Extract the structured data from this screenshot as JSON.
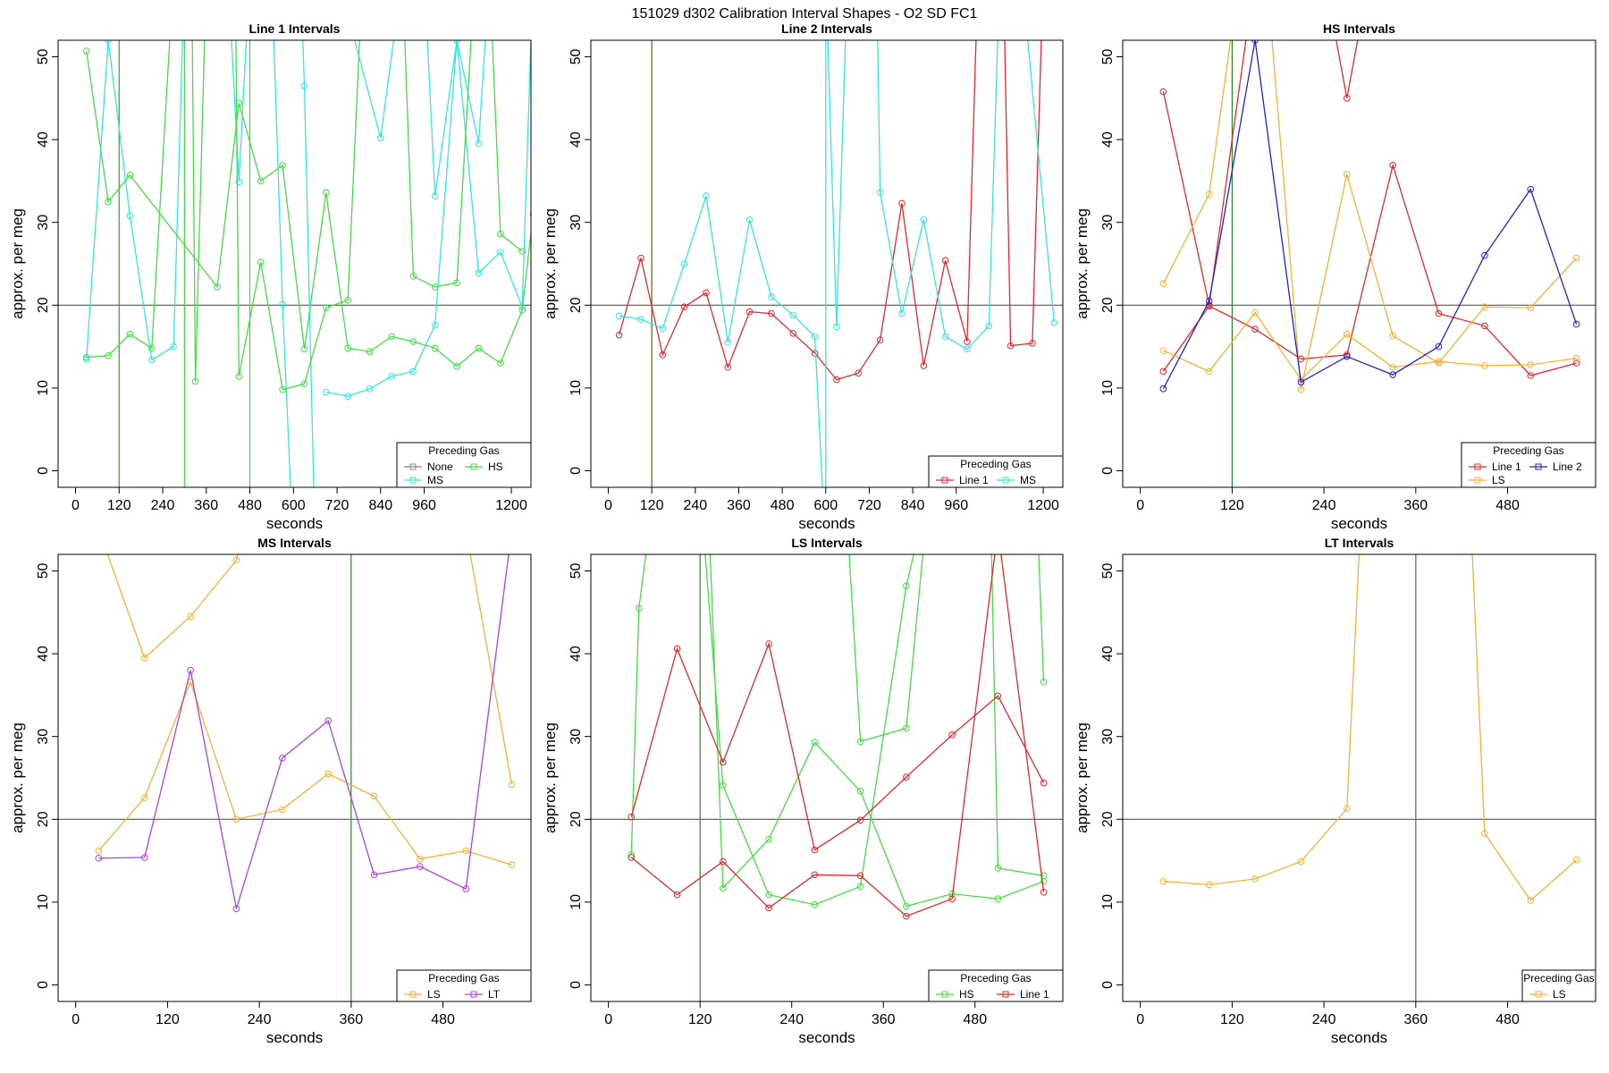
{
  "title": "151029   d302   Calibration Interval Shapes - O2 SD FC1",
  "chart_data": [
    {
      "type": "line",
      "title": "Line 1 Intervals",
      "xlabel": "seconds",
      "ylabel": "approx. per meg",
      "xlim": [
        -48,
        1254
      ],
      "ylim": [
        -2,
        52
      ],
      "xticks": [
        0,
        120,
        240,
        360,
        480,
        600,
        720,
        840,
        960,
        1200
      ],
      "yticks": [
        0,
        10,
        20,
        30,
        40,
        50
      ],
      "hline": 20,
      "vline": 120,
      "vline_color": "#22aa22",
      "legend": "bottomright",
      "legend_title": "Preceding Gas",
      "series": [
        {
          "name": "None",
          "color": "#888888",
          "x": [],
          "values": []
        },
        {
          "name": "MS",
          "color": "#33e6e6",
          "x": [
            30,
            90,
            150,
            210,
            270,
            300,
            null,
            420,
            450,
            480,
            null,
            540,
            570,
            600,
            null,
            620,
            630,
            660,
            null,
            690,
            750,
            810,
            870,
            930,
            990,
            1050,
            1110,
            1170,
            1230,
            1260,
            null,
            720,
            840,
            900,
            null,
            960,
            990,
            1050,
            1110,
            1140
          ],
          "values": [
            13.5,
            52,
            30.8,
            13.4,
            15,
            60,
            null,
            60,
            34.9,
            60,
            null,
            60,
            20.1,
            -10,
            null,
            60,
            46.5,
            -10,
            null,
            9.5,
            9,
            9.9,
            11.4,
            12,
            17.6,
            52,
            23.9,
            26.4,
            19.8,
            60,
            null,
            60,
            40.2,
            60,
            null,
            60,
            33.2,
            52,
            39.5,
            60
          ]
        },
        {
          "name": "HS",
          "color": "#44dd44",
          "x": [
            30,
            90,
            150,
            210,
            270,
            null,
            30,
            90,
            150,
            390,
            450,
            510,
            570,
            630,
            690,
            750,
            810,
            870,
            930,
            990,
            1050,
            1110,
            1170,
            1230,
            1260,
            null,
            300,
            300,
            null,
            320,
            330,
            360,
            null,
            480,
            480,
            null,
            440,
            450,
            510,
            570,
            630,
            690,
            750,
            790,
            null,
            900,
            930,
            990,
            1050,
            1100,
            null,
            1140,
            1170,
            1230
          ],
          "values": [
            13.7,
            13.9,
            16.5,
            14.8,
            60,
            null,
            50.7,
            32.5,
            35.7,
            22.2,
            44.4,
            35,
            36.9,
            14.7,
            33.6,
            14.8,
            14.4,
            16.2,
            15.6,
            14.8,
            12.6,
            14.8,
            13,
            19.4,
            31,
            null,
            -10,
            60,
            null,
            60,
            10.8,
            60,
            null,
            -10,
            60,
            null,
            60,
            11.4,
            25.2,
            9.8,
            10.5,
            19.7,
            20.6,
            60,
            null,
            60,
            23.5,
            22.2,
            22.7,
            60,
            null,
            60,
            28.6,
            26.5
          ]
        }
      ]
    },
    {
      "type": "line",
      "title": "Line 2 Intervals",
      "xlabel": "seconds",
      "ylabel": "approx. per meg",
      "xlim": [
        -48,
        1254
      ],
      "ylim": [
        -2,
        52
      ],
      "xticks": [
        0,
        120,
        240,
        360,
        480,
        600,
        720,
        840,
        960,
        1200
      ],
      "yticks": [
        0,
        10,
        20,
        30,
        40,
        50
      ],
      "hline": 20,
      "vline": 120,
      "vline_color": "#556b00",
      "legend": "bottomright",
      "legend_title": "Preceding Gas",
      "series": [
        {
          "name": "Line 1",
          "color": "#e8262b",
          "x": [
            30,
            90,
            150,
            210,
            270,
            330,
            390,
            450,
            510,
            570,
            630,
            690,
            750,
            810,
            870,
            930,
            990,
            1020,
            null,
            1090,
            1110,
            1170,
            1200
          ],
          "values": [
            16.4,
            25.7,
            14,
            19.8,
            21.5,
            12.5,
            19.2,
            19,
            16.6,
            14.2,
            11,
            11.8,
            15.8,
            32.3,
            12.7,
            25.4,
            15.6,
            60,
            null,
            60,
            15.1,
            15.4,
            60
          ]
        },
        {
          "name": "MS",
          "color": "#33e6e6",
          "x": [
            30,
            90,
            150,
            210,
            270,
            330,
            390,
            450,
            510,
            570,
            600,
            600,
            630,
            660,
            null,
            740,
            750,
            810,
            870,
            930,
            990,
            1050,
            1080,
            null,
            1140,
            1230
          ],
          "values": [
            18.7,
            18.3,
            17.2,
            25,
            33.2,
            15.5,
            30.3,
            21,
            18.8,
            16.2,
            -10,
            60,
            17.4,
            60,
            null,
            60,
            33.6,
            19,
            30.3,
            16.2,
            14.7,
            17.5,
            60,
            null,
            60,
            17.9
          ]
        }
      ]
    },
    {
      "type": "line",
      "title": "HS Intervals",
      "xlabel": "seconds",
      "ylabel": "approx. per meg",
      "xlim": [
        -23,
        595
      ],
      "ylim": [
        -2,
        52
      ],
      "xticks": [
        0,
        120,
        240,
        360,
        480
      ],
      "yticks": [
        0,
        10,
        20,
        30,
        40,
        50
      ],
      "hline": 20,
      "vline": 120,
      "vline_color": "#228b22",
      "legend": "bottomright",
      "legend_title": "Preceding Gas",
      "series": [
        {
          "name": "Line 1",
          "color": "#e8262b",
          "x": [
            30,
            90,
            150,
            null,
            240,
            270,
            300,
            null,
            30,
            90,
            150,
            210,
            270,
            330,
            390,
            450,
            510,
            570
          ],
          "values": [
            45.8,
            20,
            60,
            null,
            60,
            45,
            60,
            null,
            12,
            19.9,
            17.1,
            13.5,
            14,
            36.9,
            19,
            17.5,
            11.5,
            13
          ]
        },
        {
          "name": "LS",
          "color": "#f7b034",
          "x": [
            30,
            90,
            130,
            null,
            165,
            210,
            270,
            330,
            390,
            450,
            510,
            570,
            null,
            30,
            90,
            150,
            210,
            270,
            330,
            390,
            450,
            510,
            570
          ],
          "values": [
            22.6,
            33.4,
            60,
            null,
            60,
            9.8,
            35.8,
            16.3,
            13,
            19.8,
            19.7,
            25.7,
            null,
            14.5,
            12,
            19.1,
            11,
            16.5,
            12.5,
            13.2,
            12.7,
            12.8,
            13.6
          ]
        },
        {
          "name": "Line 2",
          "color": "#2222cc",
          "x": [
            30,
            90,
            150,
            210,
            270,
            330,
            390,
            450,
            510,
            570
          ],
          "values": [
            9.9,
            20.5,
            52,
            10.7,
            13.8,
            11.6,
            15,
            26,
            34,
            17.7
          ]
        }
      ]
    },
    {
      "type": "line",
      "title": "MS Intervals",
      "xlabel": "seconds",
      "ylabel": "approx. per meg",
      "xlim": [
        -23,
        595
      ],
      "ylim": [
        -2,
        52
      ],
      "xticks": [
        0,
        120,
        240,
        360,
        480
      ],
      "yticks": [
        0,
        10,
        20,
        30,
        40,
        50
      ],
      "hline": 20,
      "vline": 360,
      "vline_color": "#228b22",
      "legend": "bottomright",
      "legend_title": "Preceding Gas",
      "series": [
        {
          "name": "LS",
          "color": "#f7b034",
          "x": [
            30,
            90,
            150,
            210,
            230,
            null,
            500,
            570,
            null,
            30,
            90,
            150,
            210,
            270,
            330,
            390,
            450,
            510,
            570
          ],
          "values": [
            55,
            39.5,
            44.5,
            51.3,
            60,
            null,
            60,
            24.2,
            null,
            16.2,
            22.6,
            36.6,
            20,
            21.2,
            25.5,
            22.8,
            15.2,
            16.2,
            14.5
          ]
        },
        {
          "name": "LT",
          "color": "#b040e0",
          "x": [
            30,
            90,
            150,
            210,
            270,
            330,
            390,
            450,
            510,
            570
          ],
          "values": [
            15.3,
            15.4,
            38,
            9.2,
            27.4,
            31.9,
            13.3,
            14.3,
            11.6,
            55
          ]
        }
      ]
    },
    {
      "type": "line",
      "title": "LS Intervals",
      "xlabel": "seconds",
      "ylabel": "approx. per meg",
      "xlim": [
        -23,
        595
      ],
      "ylim": [
        -2,
        52
      ],
      "xticks": [
        0,
        120,
        240,
        360,
        480
      ],
      "yticks": [
        0,
        10,
        20,
        30,
        40,
        50
      ],
      "hline": 20,
      "vline": 120,
      "vline_color": "#228b22",
      "legend": "bottomright",
      "legend_title": "Preceding Gas",
      "series": [
        {
          "name": "HS",
          "color": "#44dd44",
          "x": [
            30,
            40,
            60,
            null,
            120,
            150,
            210,
            270,
            330,
            390,
            420,
            null,
            130,
            150,
            210,
            270,
            330,
            390,
            450,
            510,
            570,
            null,
            310,
            330,
            390,
            420,
            null,
            500,
            510,
            570,
            null,
            560,
            570
          ],
          "values": [
            15.7,
            45.5,
            60,
            null,
            60,
            24.1,
            10.9,
            9.7,
            11.9,
            48.2,
            60,
            null,
            60,
            11.7,
            17.6,
            29.3,
            23.4,
            9.5,
            11,
            10.4,
            12.5,
            null,
            60,
            29.4,
            31,
            60,
            null,
            60,
            14.1,
            13.2,
            null,
            60,
            36.6
          ]
        },
        {
          "name": "Line 1",
          "color": "#e8262b",
          "x": [
            30,
            90,
            150,
            210,
            270,
            330,
            390,
            450,
            510,
            570,
            null,
            30,
            90,
            150,
            210,
            270,
            330,
            390,
            450,
            510,
            570
          ],
          "values": [
            20.3,
            40.6,
            26.9,
            41.2,
            16.3,
            19.9,
            25.1,
            30.2,
            34.9,
            24.4,
            null,
            15.4,
            10.9,
            14.9,
            9.3,
            13.3,
            13.2,
            8.3,
            10.4,
            55,
            11.2
          ]
        }
      ]
    },
    {
      "type": "line",
      "title": "LT Intervals",
      "xlabel": "seconds",
      "ylabel": "approx. per meg",
      "xlim": [
        -23,
        595
      ],
      "ylim": [
        -2,
        52
      ],
      "xticks": [
        0,
        120,
        240,
        360,
        480
      ],
      "yticks": [
        0,
        10,
        20,
        30,
        40,
        50
      ],
      "hline": 20,
      "vline": 360,
      "vline_color": "#228b22",
      "legend": "bottomright",
      "legend_title": "Preceding Gas",
      "series": [
        {
          "name": "LS",
          "color": "#f7b034",
          "x": [
            30,
            90,
            150,
            210,
            270,
            290,
            null,
            430,
            450,
            510,
            570
          ],
          "values": [
            12.5,
            12.1,
            12.8,
            14.9,
            21.3,
            60,
            null,
            60,
            18.3,
            10.2,
            15.1
          ]
        }
      ]
    }
  ]
}
